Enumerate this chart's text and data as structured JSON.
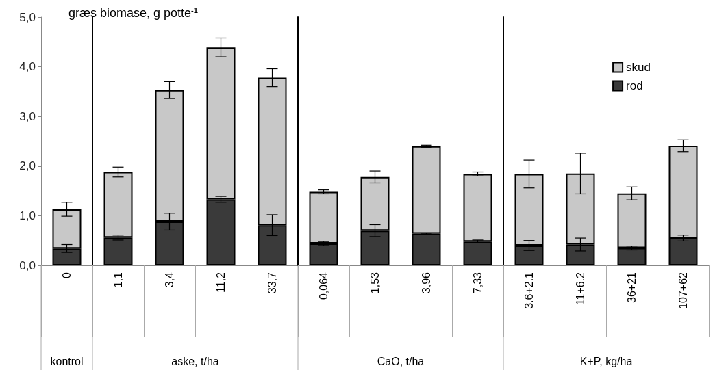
{
  "chart_data": [
    {
      "type": "bar",
      "stacked": true,
      "title": "græs biomase, g potte$^{-1}$",
      "xlabel": "kontrol",
      "categories": [
        "0"
      ],
      "series": [
        {
          "color": "#3a3a3a",
          "values": [
            0.34
          ],
          "errors": [
            0.08
          ]
        },
        {
          "color": "#c8c8c8",
          "values": [
            0.79
          ],
          "errors": [
            0.14
          ]
        }
      ],
      "ylim": [
        0,
        5
      ],
      "yticks": [
        {
          "value": 0,
          "label": "0,0"
        },
        {
          "value": 1,
          "label": "1,0"
        },
        {
          "value": 2,
          "label": "2,0"
        },
        {
          "value": 3,
          "label": "3,0"
        },
        {
          "value": 4,
          "label": "4,0"
        },
        {
          "value": 5,
          "label": "5,0"
        }
      ],
      "grid": false
    },
    {
      "type": "bar",
      "stacked": true,
      "xlabel": "aske, t/ha",
      "categories": [
        "1,1",
        "3,4",
        "11,2",
        "33,7"
      ],
      "series": [
        {
          "color": "#3a3a3a",
          "values": [
            0.56,
            0.88,
            1.33,
            0.81
          ],
          "errors": [
            0.05,
            0.17,
            0.06,
            0.21
          ]
        },
        {
          "color": "#c8c8c8",
          "values": [
            1.32,
            2.65,
            3.06,
            2.97
          ],
          "errors": [
            0.1,
            0.17,
            0.19,
            0.18
          ]
        }
      ],
      "ylim": [
        0,
        5
      ],
      "tick_labels": "x",
      "grid": false
    },
    {
      "type": "bar",
      "stacked": true,
      "xlabel": "CaO, t/ha",
      "categories": [
        "0,064",
        "1,53",
        "3,96",
        "7,33"
      ],
      "series": [
        {
          "color": "#3a3a3a",
          "values": [
            0.44,
            0.7,
            0.64,
            0.48
          ],
          "errors": [
            0.04,
            0.12,
            0.01,
            0.03
          ]
        },
        {
          "color": "#c8c8c8",
          "values": [
            1.04,
            1.08,
            1.76,
            1.36
          ],
          "errors": [
            0.04,
            0.12,
            0.02,
            0.04
          ]
        }
      ],
      "ylim": [
        0,
        5
      ],
      "tick_labels": "x",
      "grid": false
    },
    {
      "type": "bar",
      "stacked": true,
      "xlabel": "K+P, kg/ha",
      "categories": [
        "3.6+2.1",
        "11+6.2",
        "36+21",
        "107+62"
      ],
      "series": [
        {
          "name": "rod",
          "color": "#3a3a3a",
          "values": [
            0.4,
            0.42,
            0.35,
            0.55
          ],
          "errors": [
            0.1,
            0.13,
            0.04,
            0.06
          ]
        },
        {
          "name": "skud",
          "color": "#c8c8c8",
          "values": [
            1.44,
            1.43,
            1.1,
            1.86
          ],
          "errors": [
            0.28,
            0.41,
            0.13,
            0.12
          ]
        }
      ],
      "ylim": [
        0,
        5
      ],
      "tick_labels": "x",
      "grid": false,
      "legend": "top right"
    }
  ]
}
